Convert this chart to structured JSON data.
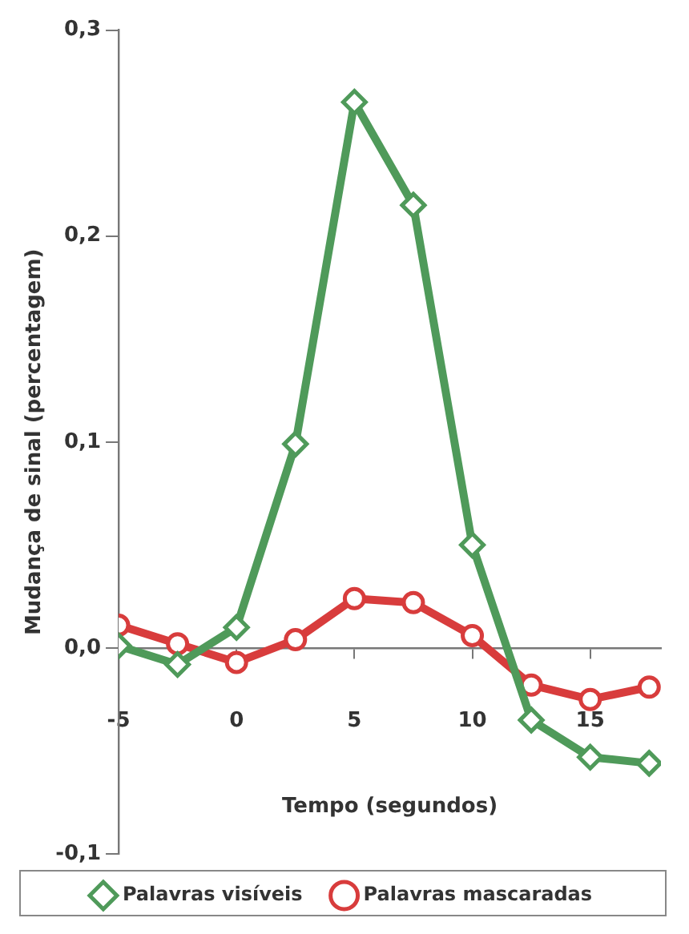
{
  "chart_data": {
    "type": "line",
    "xlabel": "Tempo (segundos)",
    "ylabel": "Mudança de sinal (percentagem)",
    "x": [
      -5,
      -2.5,
      0,
      2.5,
      5,
      7.5,
      10,
      12.5,
      15,
      17.5
    ],
    "xlim": [
      -5,
      18
    ],
    "xticks": [
      -5,
      0,
      5,
      10,
      15
    ],
    "ylim": [
      -0.1,
      0.3
    ],
    "yticks": [
      {
        "value": -0.1,
        "label": "-0,1"
      },
      {
        "value": 0,
        "label": "0,0"
      },
      {
        "value": 0.1,
        "label": "0,1"
      },
      {
        "value": 0.2,
        "label": "0,2"
      },
      {
        "value": 0.3,
        "label": "0,3"
      }
    ],
    "legend": "bottom",
    "line_style": "solid",
    "series": [
      {
        "name": "Palavras visíveis",
        "color": "#4f9a5a",
        "marker": "diamond",
        "values": [
          0.001,
          -0.008,
          0.01,
          0.099,
          0.265,
          0.215,
          0.05,
          -0.035,
          -0.053,
          -0.056
        ]
      },
      {
        "name": "Palavras mascaradas",
        "color": "#d83c3c",
        "marker": "circle",
        "values": [
          0.011,
          0.002,
          -0.007,
          0.004,
          0.024,
          0.022,
          0.006,
          -0.018,
          -0.025,
          -0.019
        ]
      }
    ]
  }
}
